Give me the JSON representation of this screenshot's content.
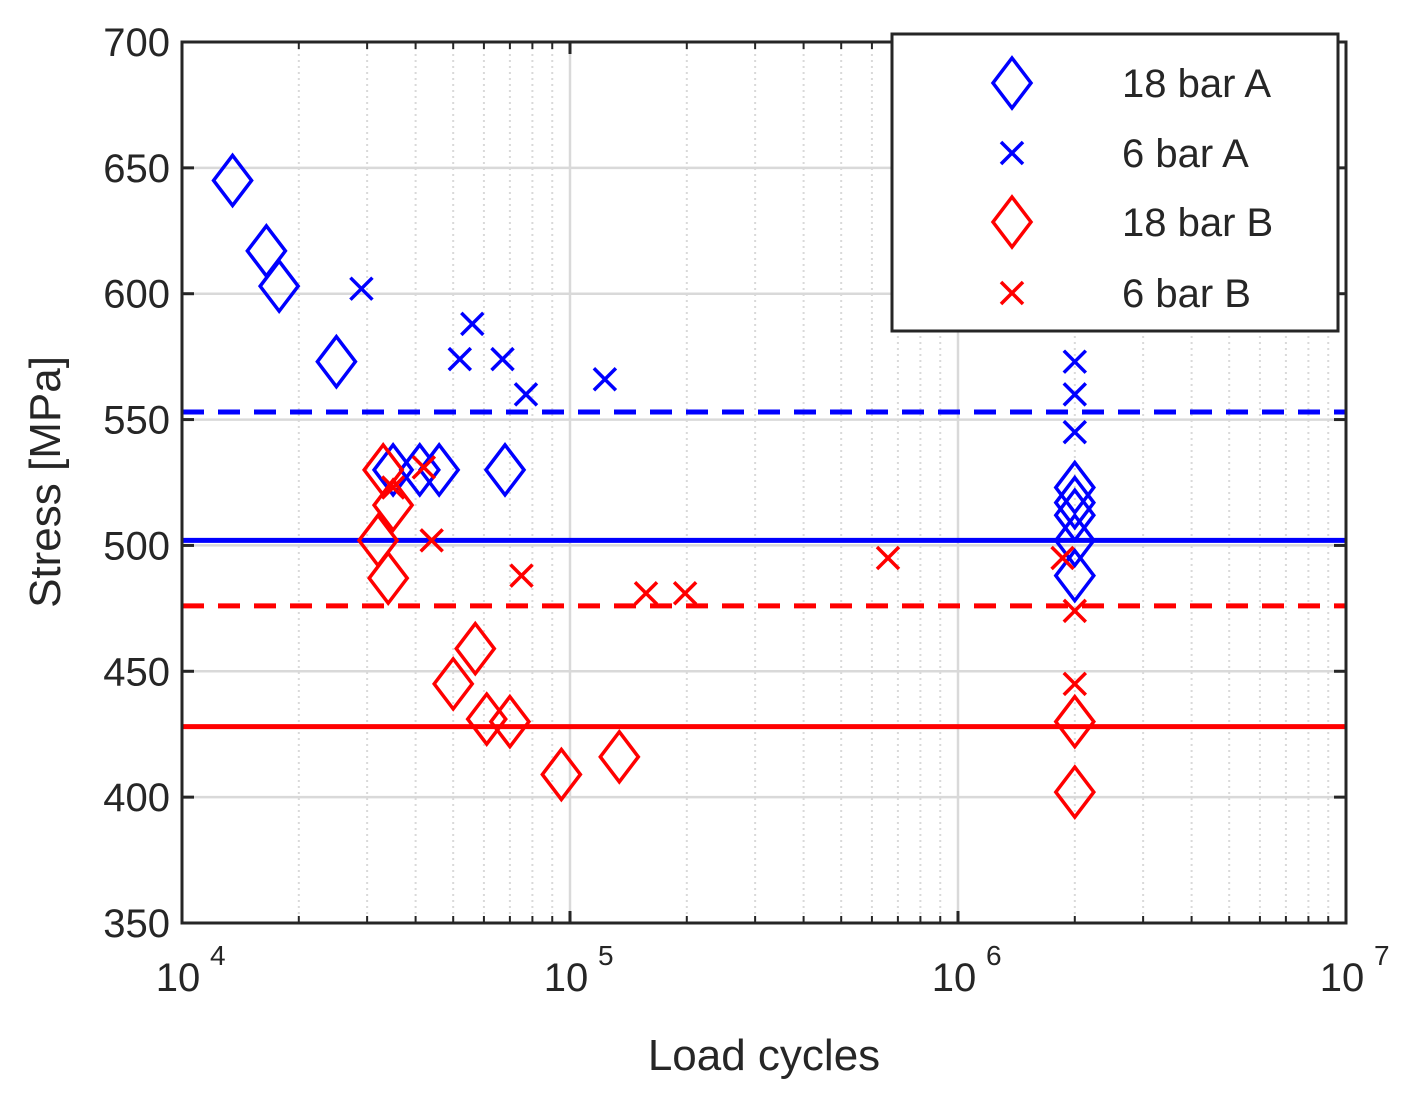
{
  "chart_data": {
    "type": "scatter",
    "title": "",
    "xlabel": "Load cycles",
    "ylabel": "Stress [MPa]",
    "xscale": "log",
    "xlim": [
      10000,
      10000000
    ],
    "ylim": [
      350,
      700
    ],
    "x_ticks": [
      {
        "value": 10000,
        "base": "10",
        "exp": "4"
      },
      {
        "value": 100000,
        "base": "10",
        "exp": "5"
      },
      {
        "value": 1000000,
        "base": "10",
        "exp": "6"
      },
      {
        "value": 10000000,
        "base": "10",
        "exp": "7"
      }
    ],
    "y_ticks": [
      "350",
      "400",
      "450",
      "500",
      "550",
      "600",
      "650",
      "700"
    ],
    "grid": true,
    "legend_position": "top-right",
    "colors": {
      "blue": "#0000ff",
      "red": "#ff0000",
      "grid": "#d9d9d9",
      "axis": "#262626"
    },
    "series": [
      {
        "name": "18 bar A",
        "marker": "diamond",
        "color": "#0000ff",
        "points": [
          [
            13500,
            645
          ],
          [
            16500,
            617
          ],
          [
            17800,
            603
          ],
          [
            25000,
            573
          ],
          [
            35000,
            530
          ],
          [
            41000,
            530
          ],
          [
            46000,
            530
          ],
          [
            68000,
            530
          ],
          [
            2000000,
            523
          ],
          [
            2000000,
            517
          ],
          [
            2000000,
            512
          ],
          [
            2000000,
            502
          ],
          [
            2000000,
            488
          ]
        ]
      },
      {
        "name": "6 bar A",
        "marker": "x",
        "color": "#0000ff",
        "points": [
          [
            29000,
            602
          ],
          [
            56000,
            588
          ],
          [
            52000,
            574
          ],
          [
            67000,
            574
          ],
          [
            77000,
            560
          ],
          [
            123000,
            566
          ],
          [
            2000000,
            573
          ],
          [
            2000000,
            560
          ],
          [
            2000000,
            545
          ]
        ]
      },
      {
        "name": "18 bar B",
        "marker": "diamond",
        "color": "#ff0000",
        "points": [
          [
            33000,
            530
          ],
          [
            35000,
            516
          ],
          [
            32000,
            502
          ],
          [
            34000,
            487
          ],
          [
            50000,
            445
          ],
          [
            57000,
            459
          ],
          [
            61000,
            431
          ],
          [
            70000,
            430
          ],
          [
            95000,
            409
          ],
          [
            134000,
            416
          ],
          [
            2000000,
            430
          ],
          [
            2000000,
            402
          ]
        ]
      },
      {
        "name": "6 bar B",
        "marker": "x",
        "color": "#ff0000",
        "points": [
          [
            35000,
            523
          ],
          [
            42000,
            531
          ],
          [
            44000,
            502
          ],
          [
            75000,
            488
          ],
          [
            157000,
            481
          ],
          [
            198000,
            481
          ],
          [
            660000,
            495
          ],
          [
            1860000,
            495
          ],
          [
            2000000,
            474
          ],
          [
            2000000,
            445
          ]
        ]
      }
    ],
    "reference_lines": [
      {
        "name": "blue-dashed-limit",
        "y": 553,
        "style": "dashed",
        "color": "#0000ff"
      },
      {
        "name": "blue-solid-limit",
        "y": 502,
        "style": "solid",
        "color": "#0000ff"
      },
      {
        "name": "red-dashed-limit",
        "y": 476,
        "style": "dashed",
        "color": "#ff0000"
      },
      {
        "name": "red-solid-limit",
        "y": 428,
        "style": "solid",
        "color": "#ff0000"
      }
    ]
  }
}
